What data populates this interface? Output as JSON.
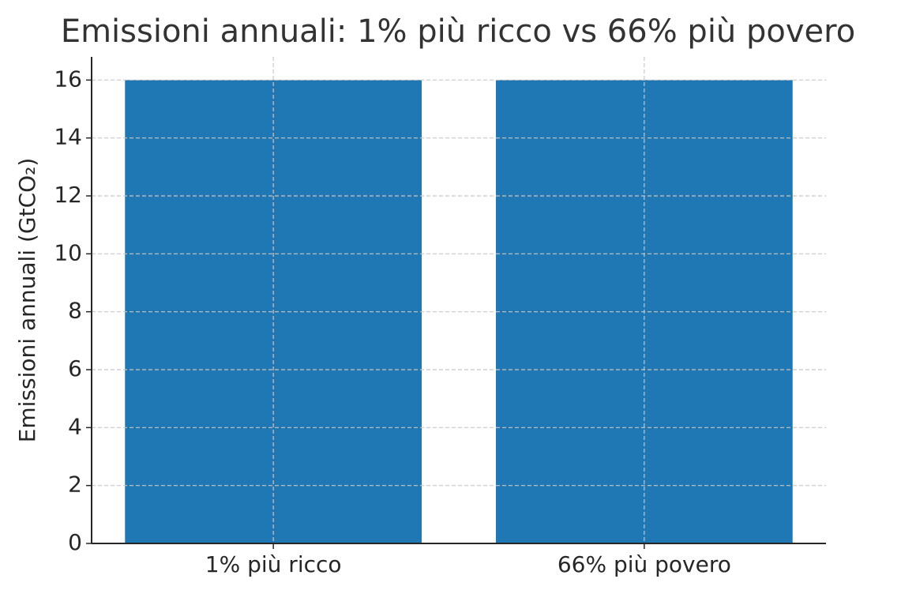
{
  "chart_data": {
    "type": "bar",
    "title": "Emissioni annuali: 1% più ricco vs 66% più povero",
    "y_label": "Emissioni annuali (GtCO₂)",
    "categories": [
      "1% più ricco",
      "66% più povero"
    ],
    "values": [
      16,
      16
    ],
    "color": "#1f77b4",
    "ylim": [
      0,
      16.8
    ],
    "yticks": [
      0,
      2,
      4,
      6,
      8,
      10,
      12,
      14,
      16
    ],
    "grid": true
  }
}
